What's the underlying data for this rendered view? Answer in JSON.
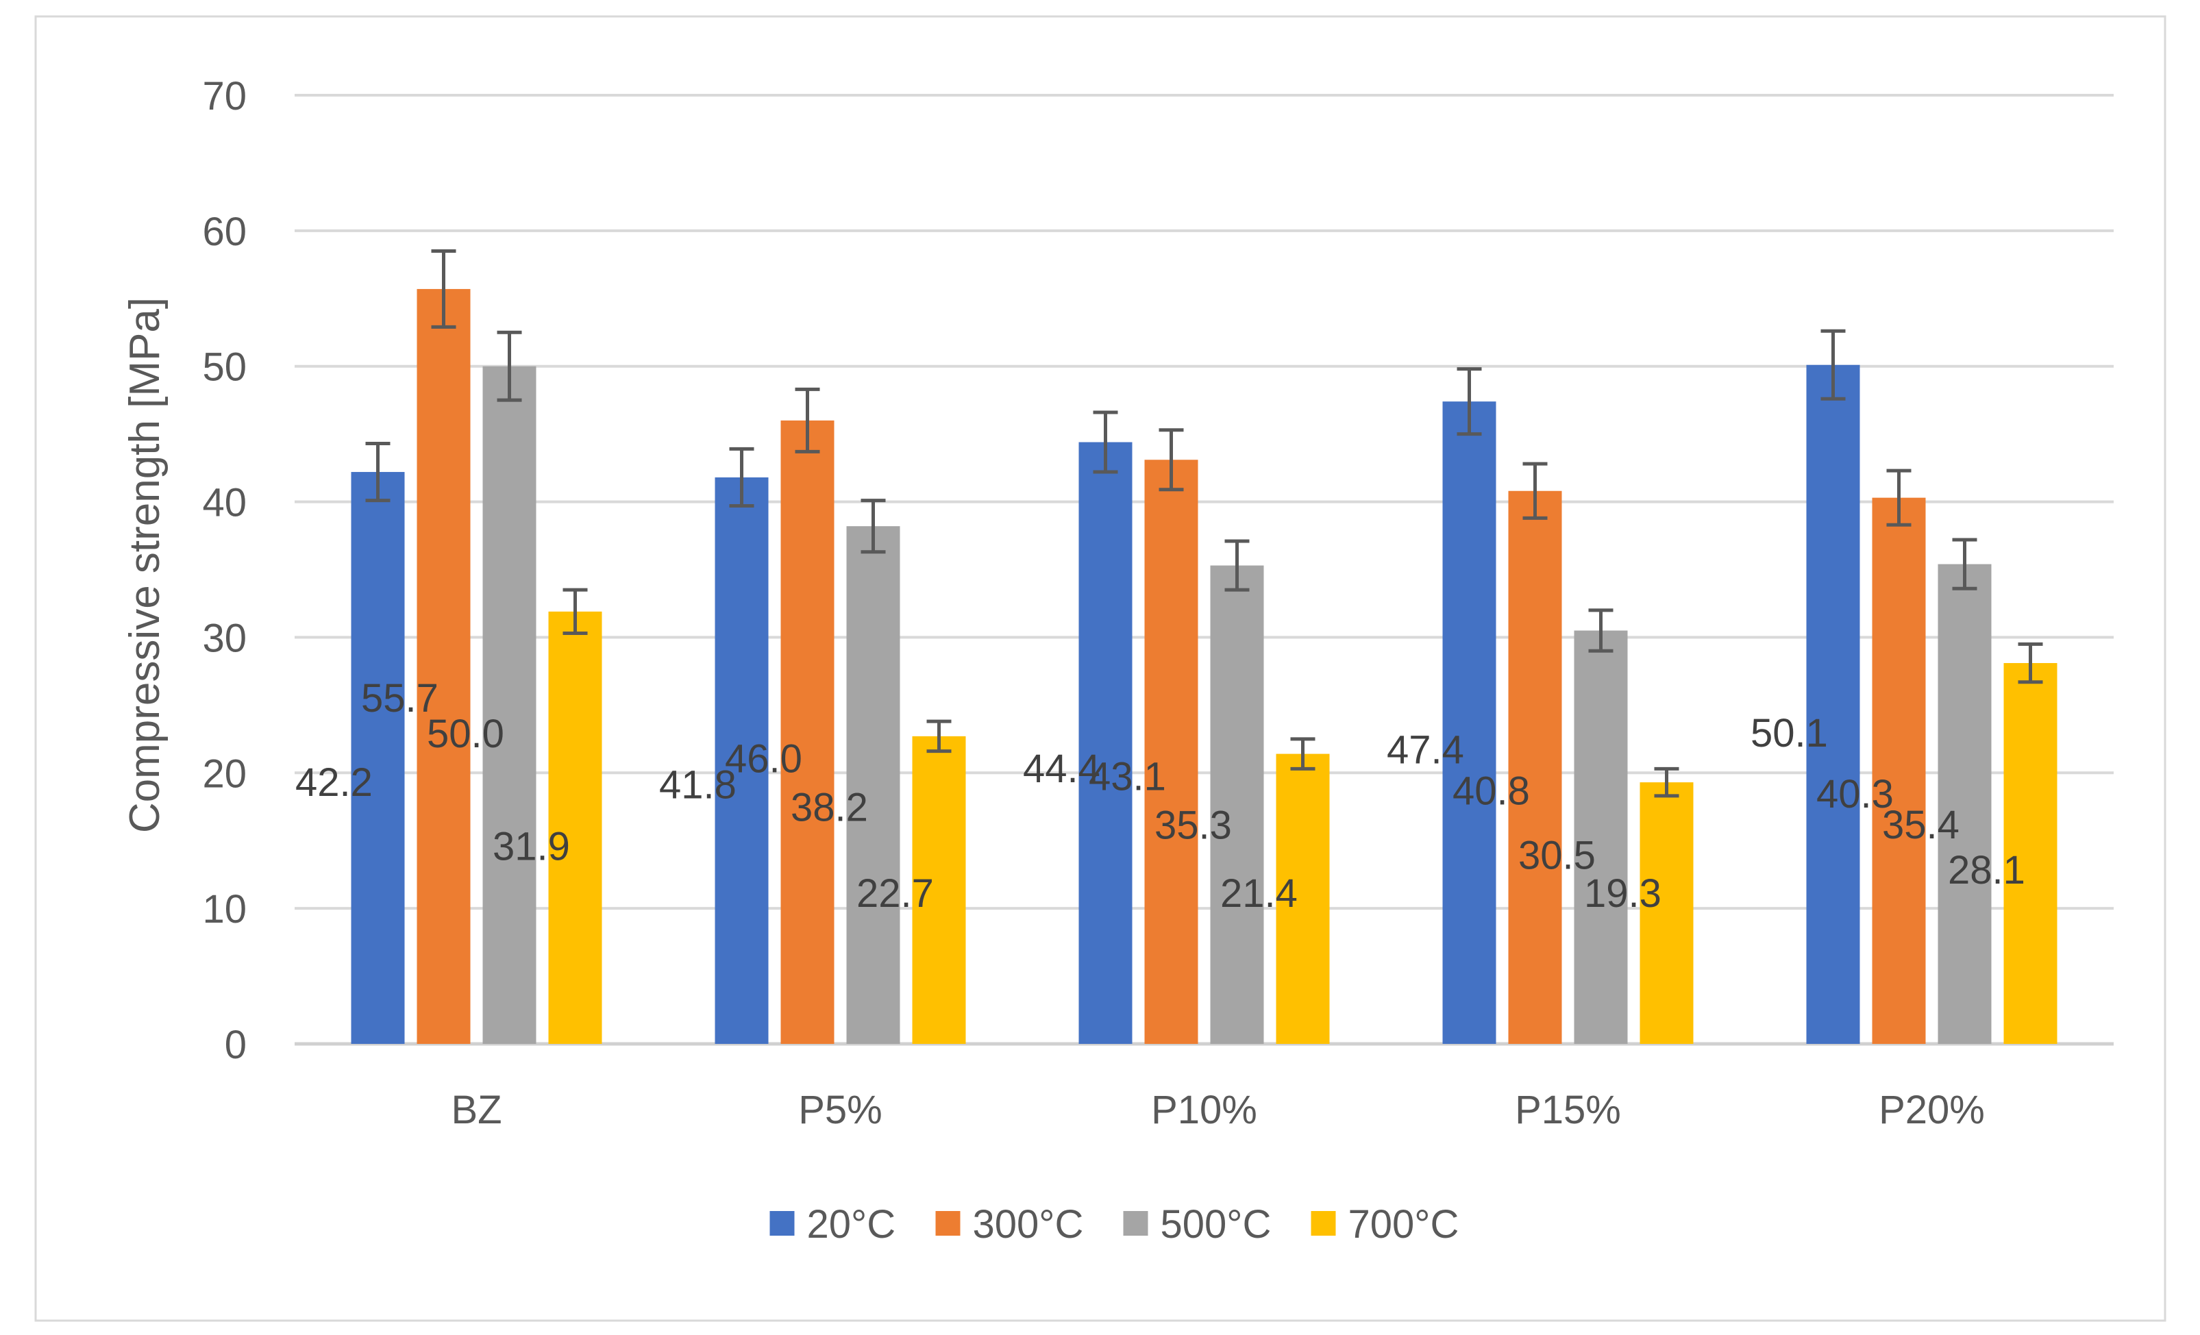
{
  "chart_data": {
    "type": "bar",
    "title": "",
    "xlabel": "",
    "ylabel": "Compressive strength [MPa]",
    "ylim": [
      0,
      70
    ],
    "yticks": [
      "0",
      "10",
      "20",
      "30",
      "40",
      "50",
      "60",
      "70"
    ],
    "grid": true,
    "legend_position": "bottom",
    "categories": [
      "BZ",
      "P5%",
      "P10%",
      "P15%",
      "P20%"
    ],
    "series": [
      {
        "name": "20°C",
        "color": "#4472C4",
        "values": [
          42.2,
          41.8,
          44.4,
          47.4,
          50.1
        ],
        "labels": [
          "42.2",
          "41.8",
          "44.4",
          "47.4",
          "50.1"
        ],
        "errors": [
          2.1,
          2.1,
          2.2,
          2.4,
          2.5
        ]
      },
      {
        "name": "300°C",
        "color": "#ED7D31",
        "values": [
          55.7,
          46.0,
          43.1,
          40.8,
          40.3
        ],
        "labels": [
          "55.7",
          "46.0",
          "43.1",
          "40.8",
          "40.3"
        ],
        "errors": [
          2.8,
          2.3,
          2.2,
          2.0,
          2.0
        ]
      },
      {
        "name": "500°C",
        "color": "#A5A5A5",
        "values": [
          50.0,
          38.2,
          35.3,
          30.5,
          35.4
        ],
        "labels": [
          "50.0",
          "38.2",
          "35.3",
          "30.5",
          "35.4"
        ],
        "errors": [
          2.5,
          1.9,
          1.8,
          1.5,
          1.8
        ]
      },
      {
        "name": "700°C",
        "color": "#FFC000",
        "values": [
          31.9,
          22.7,
          21.4,
          19.3,
          28.1
        ],
        "labels": [
          "31.9",
          "22.7",
          "21.4",
          "19.3",
          "28.1"
        ],
        "errors": [
          1.6,
          1.1,
          1.1,
          1.0,
          1.4
        ]
      }
    ]
  }
}
